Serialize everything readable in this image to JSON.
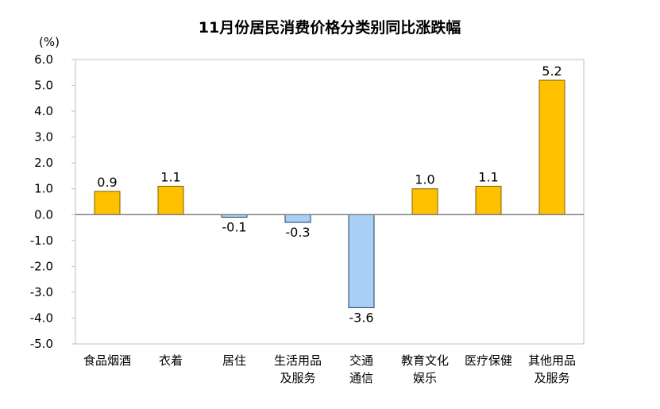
{
  "chart_data": {
    "type": "bar",
    "title": "11月份居民消费价格分类别同比涨跌幅",
    "unit_label": "(%)",
    "ylim": [
      -5.0,
      6.0
    ],
    "yticks": [
      "6.0",
      "5.0",
      "4.0",
      "3.0",
      "2.0",
      "1.0",
      "0.0",
      "-1.0",
      "-2.0",
      "-3.0",
      "-4.0",
      "-5.0"
    ],
    "categories": [
      [
        "食品烟酒"
      ],
      [
        "衣着"
      ],
      [
        "居住"
      ],
      [
        "生活用品",
        "及服务"
      ],
      [
        "交通",
        "通信"
      ],
      [
        "教育文化",
        "娱乐"
      ],
      [
        "医疗保健"
      ],
      [
        "其他用品",
        "及服务"
      ]
    ],
    "values": [
      0.9,
      1.1,
      -0.1,
      -0.3,
      -3.6,
      1.0,
      1.1,
      5.2
    ],
    "value_labels": [
      "0.9",
      "1.1",
      "-0.1",
      "-0.3",
      "-3.6",
      "1.0",
      "1.1",
      "5.2"
    ],
    "grid": false,
    "legend": "none",
    "colors": {
      "positive_fill": "#FFC000",
      "positive_stroke": "#7F6000",
      "negative_fill": "#A9CFF7",
      "negative_stroke": "#1F3F66",
      "axis": "#7F7F7F"
    }
  }
}
